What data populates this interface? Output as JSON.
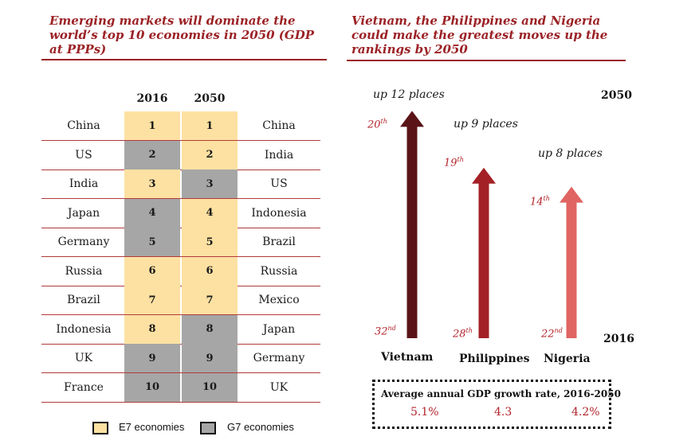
{
  "left_title": "Emerging markets will dominate the world’s top 10 economies in 2050 (GDP at PPPs)",
  "right_title": "Vietnam, the Philippines and Nigeria could make the greatest moves up the rankings by 2050",
  "colors": {
    "accent": "#9b2226",
    "e7": "#fde1a2",
    "g7": "#a6a6a6",
    "vietnam": "#5a1417",
    "philippines": "#a32126",
    "nigeria": "#e06462"
  },
  "chart_data": [
    {
      "type": "table",
      "columns": [
        "2016",
        "2050"
      ],
      "rows": [
        {
          "rank": "1",
          "country_2016": "China",
          "group_2016": "E7",
          "country_2050": "China",
          "group_2050": "E7"
        },
        {
          "rank": "2",
          "country_2016": "US",
          "group_2016": "G7",
          "country_2050": "India",
          "group_2050": "E7"
        },
        {
          "rank": "3",
          "country_2016": "India",
          "group_2016": "E7",
          "country_2050": "US",
          "group_2050": "G7"
        },
        {
          "rank": "4",
          "country_2016": "Japan",
          "group_2016": "G7",
          "country_2050": "Indonesia",
          "group_2050": "E7"
        },
        {
          "rank": "5",
          "country_2016": "Germany",
          "group_2016": "G7",
          "country_2050": "Brazil",
          "group_2050": "E7"
        },
        {
          "rank": "6",
          "country_2016": "Russia",
          "group_2016": "E7",
          "country_2050": "Russia",
          "group_2050": "E7"
        },
        {
          "rank": "7",
          "country_2016": "Brazil",
          "group_2016": "E7",
          "country_2050": "Mexico",
          "group_2050": "E7"
        },
        {
          "rank": "8",
          "country_2016": "Indonesia",
          "group_2016": "E7",
          "country_2050": "Japan",
          "group_2050": "G7"
        },
        {
          "rank": "9",
          "country_2016": "UK",
          "group_2016": "G7",
          "country_2050": "Germany",
          "group_2050": "G7"
        },
        {
          "rank": "10",
          "country_2016": "France",
          "group_2016": "G7",
          "country_2050": "UK",
          "group_2050": "G7"
        }
      ],
      "legend": [
        {
          "label": "E7 economies",
          "color": "#fde1a2"
        },
        {
          "label": "G7 economies",
          "color": "#a6a6a6"
        }
      ]
    },
    {
      "type": "bar",
      "year_start": "2016",
      "year_end": "2050",
      "countries": [
        {
          "name": "Vietnam",
          "rank_2016": 32,
          "rank_2016_suffix": "nd",
          "rank_2050": 20,
          "rank_2050_suffix": "th",
          "move_label": "up 12 places",
          "growth_rate": "5.1%"
        },
        {
          "name": "Philippines",
          "rank_2016": 28,
          "rank_2016_suffix": "th",
          "rank_2050": 19,
          "rank_2050_suffix": "th",
          "move_label": "up 9 places",
          "growth_rate": "4.3"
        },
        {
          "name": "Nigeria",
          "rank_2016": 22,
          "rank_2016_suffix": "nd",
          "rank_2050": 14,
          "rank_2050_suffix": "th",
          "move_label": "up 8 places",
          "growth_rate": "4.2%"
        }
      ],
      "growth_title": "Average annual GDP growth rate, 2016-2050"
    }
  ]
}
